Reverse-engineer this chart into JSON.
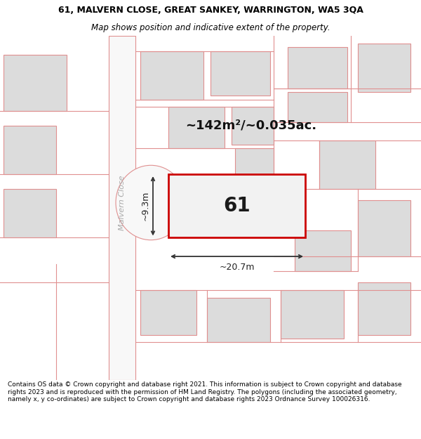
{
  "title_line1": "61, MALVERN CLOSE, GREAT SANKEY, WARRINGTON, WA5 3QA",
  "title_line2": "Map shows position and indicative extent of the property.",
  "footer": "Contains OS data © Crown copyright and database right 2021. This information is subject to Crown copyright and database rights 2023 and is reproduced with the permission of HM Land Registry. The polygons (including the associated geometry, namely x, y co-ordinates) are subject to Crown copyright and database rights 2023 Ordnance Survey 100026316.",
  "area_label": "~142m²/~0.035ac.",
  "width_label": "~20.7m",
  "height_label": "~9.3m",
  "plot_number": "61",
  "road_label": "Malvern Close",
  "map_bg": "#ebebeb",
  "building_fill": "#dcdcdc",
  "building_outline": "#e09090",
  "road_fill": "#f8f8f8",
  "road_outline": "#e09090",
  "plot_fill": "#f2f2f2",
  "plot_outline_color": "#cc0000",
  "title_fontsize": 9,
  "subtitle_fontsize": 8.5,
  "footer_fontsize": 6.5,
  "plot_num_fontsize": 20,
  "area_fontsize": 13,
  "measure_fontsize": 9
}
